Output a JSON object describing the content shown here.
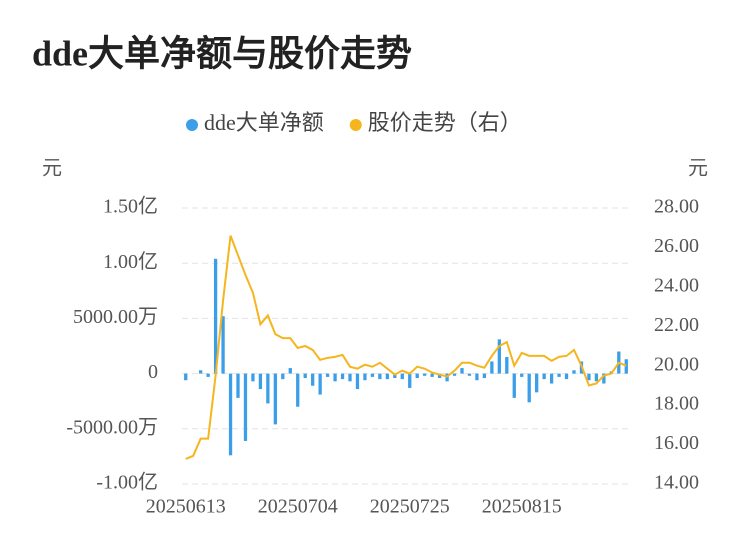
{
  "chart_data": {
    "type": "bar+line",
    "title": "dde大单净额与股价走势",
    "y_label": "元",
    "y2_label": "元",
    "categories": [
      "20250613",
      null,
      null,
      null,
      null,
      null,
      null,
      null,
      null,
      null,
      null,
      null,
      null,
      null,
      null,
      "20250704",
      null,
      null,
      null,
      null,
      null,
      null,
      null,
      null,
      null,
      null,
      null,
      null,
      null,
      null,
      "20250725",
      null,
      null,
      null,
      null,
      null,
      null,
      null,
      null,
      null,
      null,
      null,
      null,
      null,
      null,
      "20250815",
      null,
      null,
      null,
      null,
      null,
      null,
      null,
      null,
      null,
      null,
      null,
      null,
      null,
      null
    ],
    "series": [
      {
        "name": "dde大单净额",
        "color": "#3a9ee8",
        "type": "bar",
        "values": [
          -600,
          0,
          300,
          -300,
          10400,
          5200,
          -7400,
          -2200,
          -6100,
          -700,
          -1400,
          -2700,
          -4600,
          -500,
          500,
          -3000,
          -400,
          -1100,
          -1900,
          -300,
          -700,
          -500,
          -700,
          -1400,
          -600,
          -300,
          -500,
          -500,
          -400,
          -500,
          -1300,
          -400,
          -200,
          -300,
          -400,
          -700,
          -200,
          500,
          -200,
          -600,
          -400,
          1100,
          3100,
          1500,
          -2200,
          -300,
          -2600,
          -1700,
          -500,
          -900,
          -300,
          -500,
          300,
          1100,
          -600,
          -700,
          -900,
          200,
          2000,
          1300
        ]
      },
      {
        "name": "股价走势（右）",
        "color": "#f5b51e",
        "type": "line",
        "axis": "y2",
        "values": [
          15.27,
          15.43,
          16.3,
          16.3,
          19.5,
          23.3,
          26.6,
          25.6,
          24.6,
          23.7,
          22.1,
          22.55,
          21.6,
          21.4,
          21.4,
          20.9,
          21.0,
          20.8,
          20.3,
          20.4,
          20.45,
          20.55,
          19.95,
          19.85,
          20.05,
          19.95,
          20.15,
          19.85,
          19.55,
          19.75,
          19.6,
          19.95,
          19.85,
          19.65,
          19.55,
          19.45,
          19.75,
          20.15,
          20.15,
          20.0,
          19.9,
          20.5,
          21.0,
          21.2,
          20.0,
          20.65,
          20.5,
          20.5,
          20.5,
          20.25,
          20.45,
          20.5,
          20.8,
          20.0,
          19.0,
          19.1,
          19.5,
          19.6,
          20.15,
          20.0
        ]
      }
    ],
    "ylim": [
      -10000,
      15000
    ],
    "yticks": [
      {
        "value": -10000,
        "label": "-1.00亿"
      },
      {
        "value": -5000,
        "label": "-5000.00万"
      },
      0,
      {
        "value": 5000,
        "label": "5000.00万"
      },
      {
        "value": 10000,
        "label": "1.00亿"
      },
      {
        "value": 15000,
        "label": "1.50亿"
      }
    ],
    "y2lim": [
      14,
      28
    ],
    "y2ticks": [
      {
        "value": 14,
        "label": "14.00"
      },
      {
        "value": 16,
        "label": "16.00"
      },
      {
        "value": 18,
        "label": "18.00"
      },
      {
        "value": 20,
        "label": "20.00"
      },
      {
        "value": 22,
        "label": "22.00"
      },
      {
        "value": 24,
        "label": "24.00"
      },
      {
        "value": 26,
        "label": "26.00"
      },
      {
        "value": 28,
        "label": "28.00"
      }
    ],
    "grid": true
  }
}
